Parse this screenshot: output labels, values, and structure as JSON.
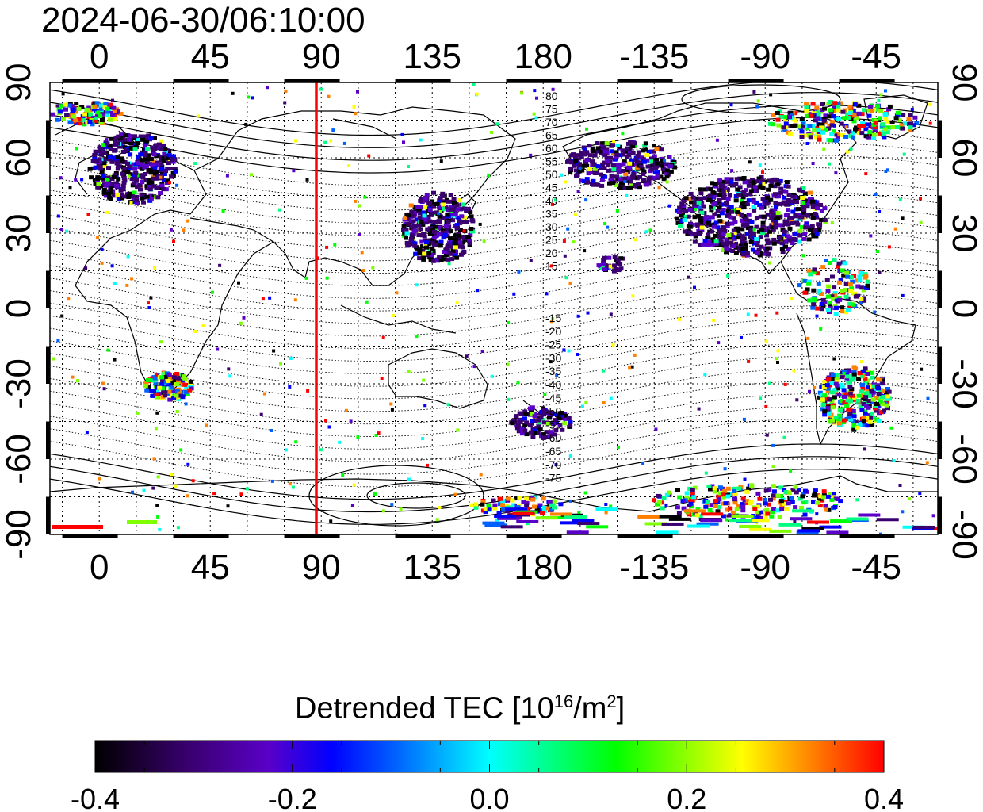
{
  "timestamp": "2024-06-30/06:10:00",
  "map": {
    "lon_ticks": [
      "0",
      "45",
      "90",
      "135",
      "180",
      "-135",
      "-90",
      "-45"
    ],
    "lat_ticks_left": [
      "90",
      "60",
      "30",
      "0",
      "-30",
      "-60",
      "-90"
    ],
    "lat_ticks_right": [
      "90",
      "60",
      "30",
      "0",
      "-30",
      "-60",
      "-90"
    ],
    "lon_range": [
      -20,
      340
    ],
    "lat_range": [
      -90,
      90
    ],
    "marker_line_lon": 88,
    "marker_line_color": "#ff0000",
    "contour_labels_north": [
      "80",
      "75",
      "70",
      "65",
      "60",
      "55",
      "50",
      "45",
      "40",
      "35",
      "30",
      "25",
      "20",
      "15"
    ],
    "contour_labels_south": [
      "-15",
      "-20",
      "-25",
      "-30",
      "-35",
      "-40",
      "-45",
      "-50",
      "-55",
      "-60",
      "-65",
      "-70",
      "-75"
    ]
  },
  "colorbar": {
    "title_main": "Detrended TEC  [10",
    "title_exp1": "16",
    "title_mid": "/m",
    "title_exp2": "2",
    "title_end": "]",
    "ticks": [
      "-0.4",
      "-0.2",
      "0.0",
      "0.2",
      "0.4"
    ],
    "min": -0.4,
    "max": 0.4,
    "colors": [
      "#000000",
      "#3a0070",
      "#5a00c8",
      "#0000ff",
      "#0060ff",
      "#00ffff",
      "#00ff80",
      "#00ff00",
      "#80ff00",
      "#ffff00",
      "#ff8000",
      "#ff0000"
    ]
  }
}
